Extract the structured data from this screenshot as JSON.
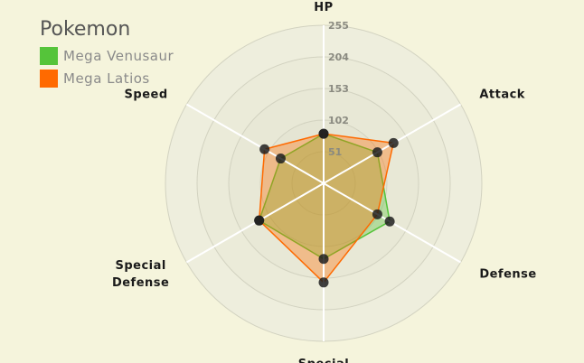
{
  "chart_data": {
    "type": "radar",
    "title": "",
    "axes": [
      "HP",
      "Attack",
      "Defense",
      "Special",
      "Special Defense",
      "Speed"
    ],
    "ticks": [
      51,
      102,
      153,
      204,
      255
    ],
    "range": [
      0,
      255
    ],
    "grid": true,
    "series": [
      {
        "name": "Mega Venusaur",
        "color": "#55c43a",
        "values": [
          80,
          100,
          123,
          122,
          120,
          80
        ]
      },
      {
        "name": "Mega Latios",
        "color": "#ff6a00",
        "values": [
          80,
          130,
          100,
          160,
          120,
          110
        ]
      }
    ]
  },
  "legend": {
    "title": "Pokemon",
    "placement": "top-left"
  }
}
